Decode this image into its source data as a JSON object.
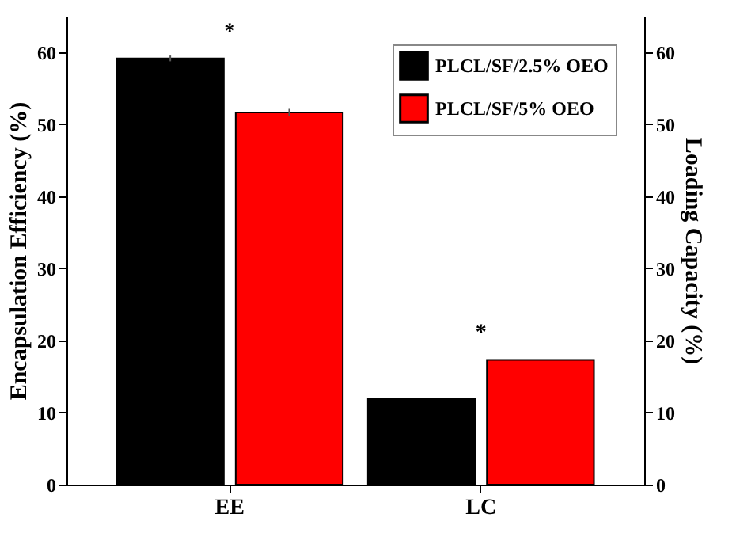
{
  "chart_data": {
    "type": "bar",
    "categories": [
      "EE",
      "LC"
    ],
    "series": [
      {
        "name": "PLCL/SF/2.5% OEO",
        "color": "#000000",
        "values": [
          59.1,
          11.9
        ],
        "errors": [
          0.4,
          null
        ]
      },
      {
        "name": "PLCL/SF/5% OEO",
        "color": "#ff0000",
        "values": [
          51.6,
          17.3
        ],
        "errors": [
          0.5,
          null
        ]
      }
    ],
    "ylabel": "Encapsulation Efficiency (%)",
    "y2label": "Loading Capacity (%)",
    "ylim": [
      0,
      65
    ],
    "yticks": [
      0,
      10,
      20,
      30,
      40,
      50,
      60
    ],
    "y2lim": [
      0,
      65
    ],
    "y2ticks": [
      0,
      10,
      20,
      30,
      40,
      50,
      60
    ],
    "annotations": [
      "*",
      "*"
    ],
    "legend": "top right",
    "grid": false
  }
}
